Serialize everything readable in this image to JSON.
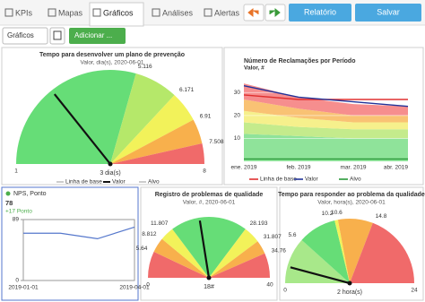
{
  "nav": {
    "tabs": [
      "KPIs",
      "Mapas",
      "Gráficos",
      "Análises",
      "Alertas"
    ],
    "active": 2,
    "buttons": [
      "Relatório",
      "Salvar"
    ]
  },
  "toolbar": [
    "Gráficos",
    "Adicionar ..."
  ],
  "widgets": [
    {
      "type": "gauge",
      "title": "Tempo para desenvolver um plano de prevenção",
      "subtitle": "Valor, dia(s), 2020-06-01",
      "edges": [
        1,
        5.116,
        6.171,
        6.91,
        7.508,
        8
      ],
      "colors": [
        "#66dd77",
        "#b5e86a",
        "#f2f25a",
        "#f8b04c",
        "#f06a6a"
      ],
      "value": 3,
      "value_label": "3 dia(s)",
      "legend": [
        "Linha de base",
        "Valor",
        "Alvo"
      ]
    },
    {
      "type": "area",
      "title": "Número de Reclamações por Período",
      "subtitle": "Valor, #",
      "categories": [
        "ene. 2019",
        "feb. 2019",
        "mar. 2019",
        "abr. 2019"
      ],
      "ylim": [
        0,
        36
      ],
      "yticks": [
        10,
        20,
        30
      ],
      "bands": [
        {
          "color": "#8fe39a",
          "values": [
            12,
            11,
            10,
            10
          ]
        },
        {
          "color": "#c4eb8c",
          "values": [
            5,
            4,
            4,
            4
          ]
        },
        {
          "color": "#f6f08c",
          "values": [
            5,
            4,
            3,
            3
          ]
        },
        {
          "color": "#f9c274",
          "values": [
            5,
            4,
            3,
            3
          ]
        },
        {
          "color": "#f68e8e",
          "values": [
            7,
            5,
            5,
            4
          ]
        }
      ],
      "series": [
        {
          "name": "Linha de base",
          "color": "#e03030",
          "values": [
            29,
            27,
            27,
            27
          ]
        },
        {
          "name": "Valor",
          "color": "#223399",
          "values": [
            33,
            28,
            26,
            24
          ]
        },
        {
          "name": "Alvo",
          "color": "#2a9a3a",
          "values": [
            1,
            1,
            1,
            1
          ]
        }
      ]
    },
    {
      "type": "line",
      "title": "NPS, Ponto",
      "value": 78,
      "change_label": "+17 Ponto",
      "categories": [
        "2019-01-01",
        null,
        null,
        "2019-04-01"
      ],
      "values": [
        69,
        69,
        61,
        78
      ],
      "color": "#5577cc",
      "ylim": [
        0,
        89
      ],
      "yticks": [
        0,
        89
      ]
    },
    {
      "type": "gauge",
      "title": "Registro de problemas de qualidade",
      "subtitle": "Valor, #, 2020-06-01",
      "edges": [
        0,
        5.64,
        8.812,
        11.807,
        28.193,
        31.807,
        34.76,
        40
      ],
      "colors": [
        "#f06a6a",
        "#f8b04c",
        "#f2f25a",
        "#66dd77",
        "#f2f25a",
        "#f8b04c",
        "#f06a6a"
      ],
      "value": 18,
      "value_label": "18#"
    },
    {
      "type": "gauge",
      "title": "Tempo para responder ao problema da qualidade",
      "subtitle": "Valor, hora(s), 2020-06-01",
      "edges": [
        0,
        5.6,
        10.2,
        10.6,
        14.8,
        24
      ],
      "colors": [
        "#a8e88a",
        "#66dd77",
        "#f2f25a",
        "#f8b04c",
        "#f06a6a"
      ],
      "value": 2,
      "value_label": "2 hora(s)"
    }
  ]
}
